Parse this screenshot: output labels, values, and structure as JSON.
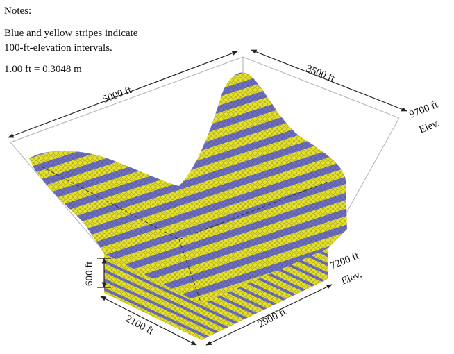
{
  "notes": {
    "heading": "Notes:",
    "lines": [
      "Blue and yellow stripes indicate",
      "100-ft-elevation intervals.",
      "1.00 ft = 0.3048 m"
    ]
  },
  "dimensions": {
    "top_length": "5000 ft",
    "top_width": "3500 ft",
    "top_elevation": "9700 ft",
    "top_elevation_unit": "Elev.",
    "base_height": "600 ft",
    "base_elevation": "7200 ft",
    "base_elevation_unit": "Elev.",
    "base_width": "2100 ft",
    "base_length": "2900 ft"
  }
}
